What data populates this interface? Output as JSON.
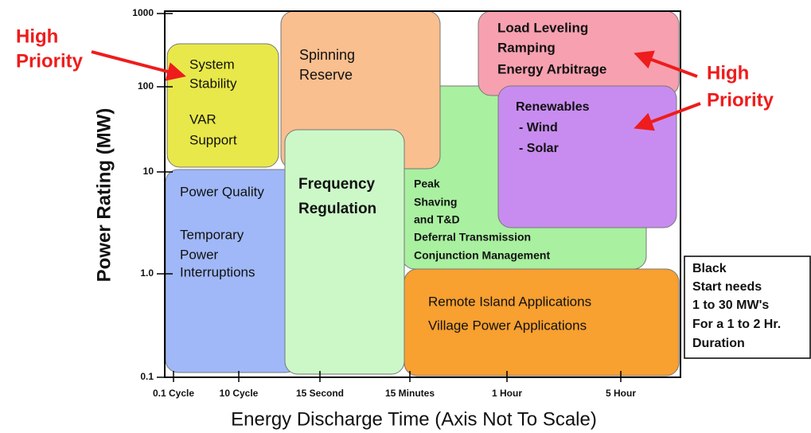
{
  "y_axis": {
    "title": "Power Rating (MW)",
    "ticks": [
      "1000",
      "100",
      "10",
      "1.0",
      "0.1"
    ]
  },
  "x_axis": {
    "title": "Energy Discharge Time (Axis Not To Scale)",
    "ticks": [
      "0.1 Cycle",
      "10 Cycle",
      "15 Second",
      "15 Minutes",
      "1 Hour",
      "5 Hour"
    ]
  },
  "boxes": [
    {
      "lines": [
        "Peak",
        "Shaving",
        "and T&D",
        "Deferral Transmission",
        "Conjunction Management"
      ]
    },
    {
      "lines": [
        "Remote Island Applications",
        "Village Power Applications"
      ]
    },
    {
      "lines": [
        "Spinning",
        "Reserve"
      ]
    },
    {
      "lines": [
        "Load Leveling",
        "Ramping",
        "Energy Arbitrage"
      ]
    },
    {
      "lines": [
        "Renewables",
        "- Wind",
        "- Solar"
      ]
    },
    {
      "lines": [
        "System",
        "Stability",
        "VAR",
        "Support"
      ]
    },
    {
      "lines": [
        "Power Quality",
        "Temporary",
        "Power",
        "Interruptions"
      ]
    },
    {
      "lines": [
        "Frequency",
        "Regulation"
      ]
    }
  ],
  "callouts": [
    {
      "lines": [
        "High",
        "Priority"
      ]
    },
    {
      "lines": [
        "High",
        "Priority"
      ]
    }
  ],
  "note": {
    "lines": [
      "Black",
      "Start needs",
      "1 to 30 MW's",
      "For a 1 to 2 Hr.",
      "Duration"
    ]
  }
}
